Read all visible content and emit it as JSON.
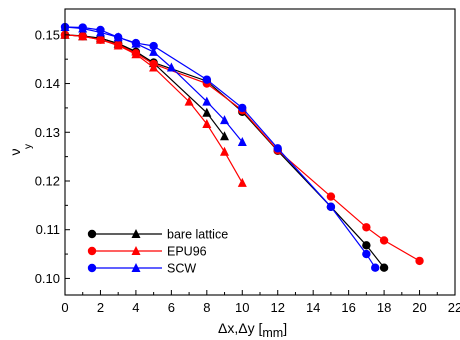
{
  "chart_data": {
    "type": "line",
    "title": "",
    "xlabel_main": "Δx,Δy [",
    "xlabel_sub": "mm",
    "xlabel_close": "]",
    "ylabel_main": "ν",
    "ylabel_sub": "y",
    "xlim": [
      0,
      22
    ],
    "ylim": [
      0.0966,
      0.1553
    ],
    "x_ticks": [
      0,
      2,
      4,
      6,
      8,
      10,
      12,
      14,
      16,
      18,
      20,
      22
    ],
    "y_ticks": [
      0.1,
      0.11,
      0.12,
      0.13,
      0.14,
      0.15
    ],
    "y_tick_labels": [
      "0.10",
      "0.11",
      "0.12",
      "0.13",
      "0.14",
      "0.15"
    ],
    "grid": false,
    "legend_position": "bottom-left",
    "series": [
      {
        "name": "bare lattice",
        "color": "#000000",
        "circles": [
          [
            0,
            0.15
          ],
          [
            1,
            0.1498
          ],
          [
            2,
            0.1493
          ],
          [
            3,
            0.1482
          ],
          [
            4,
            0.1465
          ],
          [
            5,
            0.1443
          ],
          [
            8,
            0.1405
          ],
          [
            10,
            0.1342
          ],
          [
            12,
            0.1262
          ],
          [
            15,
            0.1147
          ],
          [
            17,
            0.1068
          ],
          [
            18,
            0.1022
          ]
        ],
        "triangles": [
          [
            0,
            0.15
          ],
          [
            1,
            0.1497
          ],
          [
            2,
            0.1493
          ],
          [
            3,
            0.1482
          ],
          [
            4,
            0.1466
          ],
          [
            5,
            0.1442
          ],
          [
            8,
            0.134
          ],
          [
            9,
            0.1292
          ]
        ]
      },
      {
        "name": "EPU96",
        "color": "#ff0000",
        "circles": [
          [
            0,
            0.15
          ],
          [
            1,
            0.1497
          ],
          [
            2,
            0.149
          ],
          [
            3,
            0.148
          ],
          [
            4,
            0.1462
          ],
          [
            5,
            0.144
          ],
          [
            8,
            0.14
          ],
          [
            10,
            0.1345
          ],
          [
            12,
            0.1263
          ],
          [
            15,
            0.1168
          ],
          [
            17,
            0.1105
          ],
          [
            18,
            0.1078
          ],
          [
            20,
            0.1036
          ]
        ],
        "triangles": [
          [
            0,
            0.15
          ],
          [
            1,
            0.1497
          ],
          [
            2,
            0.149
          ],
          [
            3,
            0.1478
          ],
          [
            4,
            0.146
          ],
          [
            5,
            0.1433
          ],
          [
            7,
            0.1363
          ],
          [
            8,
            0.1317
          ],
          [
            9,
            0.126
          ],
          [
            10,
            0.1196
          ]
        ]
      },
      {
        "name": "SCW",
        "color": "#0000ff",
        "circles": [
          [
            0,
            0.1516
          ],
          [
            1,
            0.1515
          ],
          [
            2,
            0.151
          ],
          [
            3,
            0.1495
          ],
          [
            4,
            0.1483
          ],
          [
            5,
            0.1477
          ],
          [
            8,
            0.1408
          ],
          [
            10,
            0.135
          ],
          [
            12,
            0.1267
          ],
          [
            15,
            0.1147
          ],
          [
            17,
            0.105
          ],
          [
            17.5,
            0.1022
          ]
        ],
        "triangles": [
          [
            0,
            0.1516
          ],
          [
            1,
            0.1513
          ],
          [
            2,
            0.1505
          ],
          [
            3,
            0.1495
          ],
          [
            4,
            0.1482
          ],
          [
            5,
            0.1465
          ],
          [
            6,
            0.1433
          ],
          [
            8,
            0.1363
          ],
          [
            9,
            0.1325
          ],
          [
            10,
            0.128
          ]
        ]
      }
    ]
  }
}
